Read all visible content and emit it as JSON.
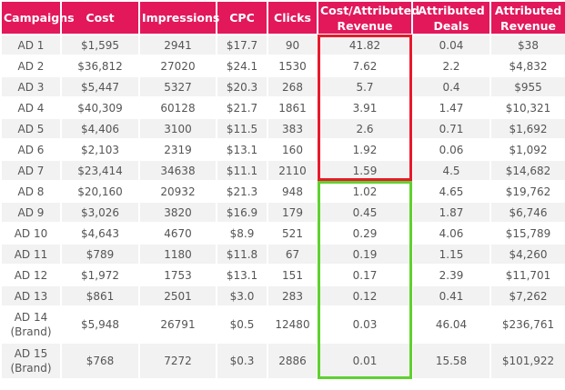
{
  "table": {
    "headers": [
      "Campaigns",
      "Cost",
      "Impressions",
      "CPC",
      "Clicks",
      "Cost/Attributed Revenue",
      "Attributed Deals",
      "Attributed Revenue"
    ],
    "rows": [
      [
        "AD 1",
        "$1,595",
        "2941",
        "$17.7",
        "90",
        "41.82",
        "0.04",
        "$38"
      ],
      [
        "AD 2",
        "$36,812",
        "27020",
        "$24.1",
        "1530",
        "7.62",
        "2.2",
        "$4,832"
      ],
      [
        "AD 3",
        "$5,447",
        "5327",
        "$20.3",
        "268",
        "5.7",
        "0.4",
        "$955"
      ],
      [
        "AD 4",
        "$40,309",
        "60128",
        "$21.7",
        "1861",
        "3.91",
        "1.47",
        "$10,321"
      ],
      [
        "AD 5",
        "$4,406",
        "3100",
        "$11.5",
        "383",
        "2.6",
        "0.71",
        "$1,692"
      ],
      [
        "AD 6",
        "$2,103",
        "2319",
        "$13.1",
        "160",
        "1.92",
        "0.06",
        "$1,092"
      ],
      [
        "AD 7",
        "$23,414",
        "34638",
        "$11.1",
        "2110",
        "1.59",
        "4.5",
        "$14,682"
      ],
      [
        "AD 8",
        "$20,160",
        "20932",
        "$21.3",
        "948",
        "1.02",
        "4.65",
        "$19,762"
      ],
      [
        "AD 9",
        "$3,026",
        "3820",
        "$16.9",
        "179",
        "0.45",
        "1.87",
        "$6,746"
      ],
      [
        "AD 10",
        "$4,643",
        "4670",
        "$8.9",
        "521",
        "0.29",
        "4.06",
        "$15,789"
      ],
      [
        "AD 11",
        "$789",
        "1180",
        "$11.8",
        "67",
        "0.19",
        "1.15",
        "$4,260"
      ],
      [
        "AD 12",
        "$1,972",
        "1753",
        "$13.1",
        "151",
        "0.17",
        "2.39",
        "$11,701"
      ],
      [
        "AD 13",
        "$861",
        "2501",
        "$3.0",
        "283",
        "0.12",
        "0.41",
        "$7,262"
      ],
      [
        "AD 14 (Brand)",
        "$5,948",
        "26791",
        "$0.5",
        "12480",
        "0.03",
        "46.04",
        "$236,761"
      ],
      [
        "AD 15 (Brand)",
        "$768",
        "7272",
        "$0.3",
        "2886",
        "0.01",
        "15.58",
        "$101,922"
      ]
    ]
  },
  "colors": {
    "header_bg": "#e2185b",
    "header_text": "#ffffff",
    "row_odd_bg": "#f2f2f2",
    "row_even_bg": "#ffffff",
    "body_text": "#555555",
    "highlight_high": "#e8192c",
    "highlight_low": "#5fd12e"
  }
}
